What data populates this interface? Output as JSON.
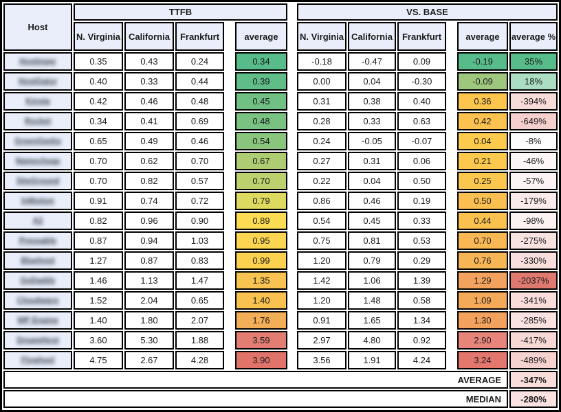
{
  "palette": {
    "header_bg": "#e9eefa",
    "host_bg": "#e9eefa",
    "border": "#000000",
    "text": "#1b1b1b",
    "green": "#57bb8a",
    "yellow": "#fcc84e",
    "red": "#e0746a"
  },
  "table": {
    "host_header": "Host",
    "group_ttfb": "TTFB",
    "group_vsbase": "VS. BASE",
    "ttfb_columns": [
      "N. Virginia",
      "California",
      "Frankfurt"
    ],
    "ttfb_average_header": "average",
    "vsbase_columns": [
      "N. Virginia",
      "California",
      "Frankfurt"
    ],
    "vsbase_average_header": "average",
    "vsbase_percent_header": "average %",
    "rows": [
      {
        "host": "Hostinger",
        "ttfb": [
          "0.35",
          "0.43",
          "0.24"
        ],
        "ttfb_avg": "0.34",
        "ttfb_avg_color": "#57bb8a",
        "vs": [
          "-0.18",
          "-0.47",
          "0.09"
        ],
        "vs_avg": "-0.19",
        "vs_avg_color": "#57bb8a",
        "vs_pct": "35%",
        "vs_pct_color": "#57bb8a"
      },
      {
        "host": "HostGator",
        "ttfb": [
          "0.40",
          "0.33",
          "0.44"
        ],
        "ttfb_avg": "0.39",
        "ttfb_avg_color": "#60bd87",
        "vs": [
          "0.00",
          "0.04",
          "-0.30"
        ],
        "vs_avg": "-0.09",
        "vs_avg_color": "#9fc67d",
        "vs_pct": "18%",
        "vs_pct_color": "#aaddc1"
      },
      {
        "host": "Kinsta",
        "ttfb": [
          "0.42",
          "0.46",
          "0.48"
        ],
        "ttfb_avg": "0.45",
        "ttfb_avg_color": "#70c084",
        "vs": [
          "0.31",
          "0.38",
          "0.40"
        ],
        "vs_avg": "0.36",
        "vs_avg_color": "#fbc54e",
        "vs_pct": "-394%",
        "vs_pct_color": "#f7dbd9"
      },
      {
        "host": "Rocket",
        "ttfb": [
          "0.34",
          "0.41",
          "0.69"
        ],
        "ttfb_avg": "0.48",
        "ttfb_avg_color": "#79c281",
        "vs": [
          "0.28",
          "0.33",
          "0.63"
        ],
        "vs_avg": "0.42",
        "vs_avg_color": "#fbc24f",
        "vs_pct": "-649%",
        "vs_pct_color": "#f4cfcd"
      },
      {
        "host": "GreenGeeks",
        "ttfb": [
          "0.65",
          "0.49",
          "0.46"
        ],
        "ttfb_avg": "0.54",
        "ttfb_avg_color": "#8ac57d",
        "vs": [
          "0.24",
          "-0.05",
          "-0.07"
        ],
        "vs_avg": "0.04",
        "vs_avg_color": "#fccb4d",
        "vs_pct": "-8%",
        "vs_pct_color": "#fefdfd"
      },
      {
        "host": "Namecheap",
        "ttfb": [
          "0.70",
          "0.62",
          "0.70"
        ],
        "ttfb_avg": "0.67",
        "ttfb_avg_color": "#aecd72",
        "vs": [
          "0.27",
          "0.31",
          "0.06"
        ],
        "vs_avg": "0.21",
        "vs_avg_color": "#fcc84e",
        "vs_pct": "-46%",
        "vs_pct_color": "#fdf6f6"
      },
      {
        "host": "SiteGround",
        "ttfb": [
          "0.70",
          "0.82",
          "0.57"
        ],
        "ttfb_avg": "0.70",
        "ttfb_avg_color": "#bcd06d",
        "vs": [
          "0.22",
          "0.04",
          "0.50"
        ],
        "vs_avg": "0.25",
        "vs_avg_color": "#fcc74e",
        "vs_pct": "-57%",
        "vs_pct_color": "#fcf4f4"
      },
      {
        "host": "InMotion",
        "ttfb": [
          "0.91",
          "0.74",
          "0.72"
        ],
        "ttfb_avg": "0.79",
        "ttfb_avg_color": "#ded95f",
        "vs": [
          "0.86",
          "0.46",
          "0.19"
        ],
        "vs_avg": "0.50",
        "vs_avg_color": "#fabf50",
        "vs_pct": "-179%",
        "vs_pct_color": "#faeae9"
      },
      {
        "host": "A2",
        "ttfb": [
          "0.82",
          "0.96",
          "0.90"
        ],
        "ttfb_avg": "0.89",
        "ttfb_avg_color": "#fbdc52",
        "vs": [
          "0.54",
          "0.45",
          "0.33"
        ],
        "vs_avg": "0.44",
        "vs_avg_color": "#fbc14f",
        "vs_pct": "-98%",
        "vs_pct_color": "#fcf2f1"
      },
      {
        "host": "Pressable",
        "ttfb": [
          "0.87",
          "0.94",
          "1.03"
        ],
        "ttfb_avg": "0.95",
        "ttfb_avg_color": "#fcd650",
        "vs": [
          "0.75",
          "0.81",
          "0.53"
        ],
        "vs_avg": "0.70",
        "vs_avg_color": "#f9b854",
        "vs_pct": "-275%",
        "vs_pct_color": "#f9e3e1"
      },
      {
        "host": "Bluehost",
        "ttfb": [
          "1.27",
          "0.87",
          "0.83"
        ],
        "ttfb_avg": "0.99",
        "ttfb_avg_color": "#fcd150",
        "vs": [
          "1.20",
          "0.79",
          "0.29"
        ],
        "vs_avg": "0.76",
        "vs_avg_color": "#f8b556",
        "vs_pct": "-330%",
        "vs_pct_color": "#f8dedc"
      },
      {
        "host": "GoDaddy",
        "ttfb": [
          "1.46",
          "1.13",
          "1.47"
        ],
        "ttfb_avg": "1.35",
        "ttfb_avg_color": "#f8c350",
        "vs": [
          "1.42",
          "1.06",
          "1.39"
        ],
        "vs_avg": "1.29",
        "vs_avg_color": "#f3a35d",
        "vs_pct": "-2037%",
        "vs_pct_color": "#e07a71"
      },
      {
        "host": "Cloudways",
        "ttfb": [
          "1.52",
          "2.04",
          "0.65"
        ],
        "ttfb_avg": "1.40",
        "ttfb_avg_color": "#f8c150",
        "vs": [
          "1.20",
          "1.48",
          "0.58"
        ],
        "vs_avg": "1.09",
        "vs_avg_color": "#f5aa5a",
        "vs_pct": "-341%",
        "vs_pct_color": "#f8dddb"
      },
      {
        "host": "WP Engine",
        "ttfb": [
          "1.40",
          "1.80",
          "2.07"
        ],
        "ttfb_avg": "1.76",
        "ttfb_avg_color": "#f3ae58",
        "vs": [
          "0.91",
          "1.65",
          "1.34"
        ],
        "vs_avg": "1.30",
        "vs_avg_color": "#f3a25d",
        "vs_pct": "-285%",
        "vs_pct_color": "#f9e2e0"
      },
      {
        "host": "DreamHost",
        "ttfb": [
          "3.60",
          "5.30",
          "1.88"
        ],
        "ttfb_avg": "3.59",
        "ttfb_avg_color": "#e27d72",
        "vs": [
          "2.97",
          "4.80",
          "0.92"
        ],
        "vs_avg": "2.90",
        "vs_avg_color": "#e8857b",
        "vs_pct": "-417%",
        "vs_pct_color": "#f6d8d5"
      },
      {
        "host": "Flywheel",
        "ttfb": [
          "4.75",
          "2.67",
          "4.28"
        ],
        "ttfb_avg": "3.90",
        "ttfb_avg_color": "#e1746a",
        "vs": [
          "3.56",
          "1.91",
          "4.24"
        ],
        "vs_avg": "3.24",
        "vs_avg_color": "#e3776d",
        "vs_pct": "-489%",
        "vs_pct_color": "#f5d2cf"
      }
    ],
    "footer": [
      {
        "label": "AVERAGE",
        "value": "-347%",
        "color": "#f8dddb"
      },
      {
        "label": "MEDIAN",
        "value": "-280%",
        "color": "#f9e2e0"
      }
    ]
  }
}
